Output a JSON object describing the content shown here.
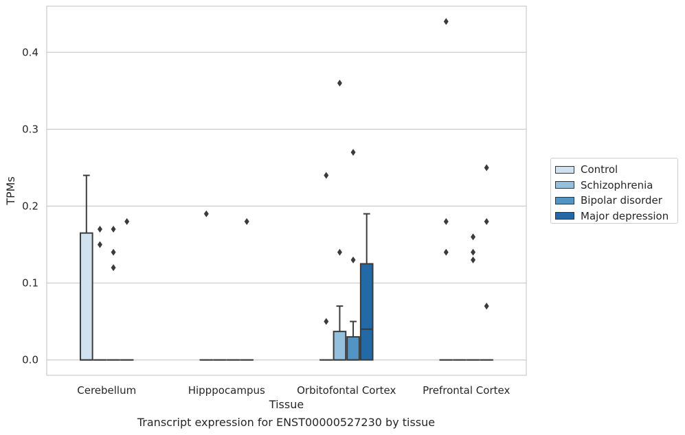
{
  "chart_data": {
    "type": "box",
    "title": "",
    "caption": "Transcript expression for ENST00000527230 by tissue",
    "xlabel": "Tissue",
    "ylabel": "TPMs",
    "ylim": [
      -0.02,
      0.46
    ],
    "yticks": [
      0.0,
      0.1,
      0.2,
      0.3,
      0.4
    ],
    "ytick_labels": [
      "0.0",
      "0.1",
      "0.2",
      "0.3",
      "0.4"
    ],
    "grid": "horizontal",
    "legend_position": "right",
    "categories": [
      "Cerebellum",
      "Hipppocampus",
      "Orbitofontal Cortex",
      "Prefrontal Cortex"
    ],
    "series": [
      {
        "name": "Control",
        "color": "#d0e1f0",
        "boxes": [
          {
            "q1": 0.0,
            "median": 0.0,
            "q3": 0.165,
            "whisker_low": 0.0,
            "whisker_high": 0.24,
            "outliers": []
          },
          {
            "q1": 0.0,
            "median": 0.0,
            "q3": 0.0,
            "whisker_low": 0.0,
            "whisker_high": 0.0,
            "outliers": [
              0.19
            ]
          },
          {
            "q1": 0.0,
            "median": 0.0,
            "q3": 0.0,
            "whisker_low": 0.0,
            "whisker_high": 0.0,
            "outliers": [
              0.05,
              0.24
            ]
          },
          {
            "q1": 0.0,
            "median": 0.0,
            "q3": 0.0,
            "whisker_low": 0.0,
            "whisker_high": 0.0,
            "outliers": [
              0.14,
              0.18,
              0.44
            ]
          }
        ]
      },
      {
        "name": "Schizophrenia",
        "color": "#94c0dd",
        "boxes": [
          {
            "q1": 0.0,
            "median": 0.0,
            "q3": 0.0,
            "whisker_low": 0.0,
            "whisker_high": 0.0,
            "outliers": [
              0.15,
              0.17
            ]
          },
          {
            "q1": 0.0,
            "median": 0.0,
            "q3": 0.0,
            "whisker_low": 0.0,
            "whisker_high": 0.0,
            "outliers": []
          },
          {
            "q1": 0.0,
            "median": 0.0,
            "q3": 0.037,
            "whisker_low": 0.0,
            "whisker_high": 0.07,
            "outliers": [
              0.14,
              0.36
            ]
          },
          {
            "q1": 0.0,
            "median": 0.0,
            "q3": 0.0,
            "whisker_low": 0.0,
            "whisker_high": 0.0,
            "outliers": []
          }
        ]
      },
      {
        "name": "Bipolar disorder",
        "color": "#5294c4",
        "boxes": [
          {
            "q1": 0.0,
            "median": 0.0,
            "q3": 0.0,
            "whisker_low": 0.0,
            "whisker_high": 0.0,
            "outliers": [
              0.12,
              0.14,
              0.17
            ]
          },
          {
            "q1": 0.0,
            "median": 0.0,
            "q3": 0.0,
            "whisker_low": 0.0,
            "whisker_high": 0.0,
            "outliers": []
          },
          {
            "q1": 0.0,
            "median": 0.0,
            "q3": 0.03,
            "whisker_low": 0.0,
            "whisker_high": 0.05,
            "outliers": [
              0.13,
              0.27
            ]
          },
          {
            "q1": 0.0,
            "median": 0.0,
            "q3": 0.0,
            "whisker_low": 0.0,
            "whisker_high": 0.0,
            "outliers": [
              0.13,
              0.14,
              0.16
            ]
          }
        ]
      },
      {
        "name": "Major depression",
        "color": "#2369a6",
        "boxes": [
          {
            "q1": 0.0,
            "median": 0.0,
            "q3": 0.0,
            "whisker_low": 0.0,
            "whisker_high": 0.0,
            "outliers": [
              0.18
            ]
          },
          {
            "q1": 0.0,
            "median": 0.0,
            "q3": 0.0,
            "whisker_low": 0.0,
            "whisker_high": 0.0,
            "outliers": [
              0.18
            ]
          },
          {
            "q1": 0.0,
            "median": 0.04,
            "q3": 0.125,
            "whisker_low": 0.0,
            "whisker_high": 0.19,
            "outliers": []
          },
          {
            "q1": 0.0,
            "median": 0.0,
            "q3": 0.0,
            "whisker_low": 0.0,
            "whisker_high": 0.0,
            "outliers": [
              0.07,
              0.18,
              0.25
            ]
          }
        ]
      }
    ]
  }
}
